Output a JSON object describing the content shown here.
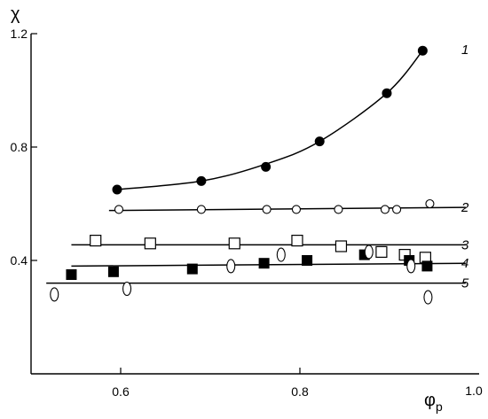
{
  "chart_data": {
    "type": "scatter",
    "title": "",
    "xlabel": "φ",
    "xlabel_sub": "p",
    "ylabel": "χ",
    "xlim": [
      0.5,
      1.0
    ],
    "ylim": [
      0.0,
      1.2
    ],
    "x_ticks": [
      {
        "value": 0.6,
        "label": "0.6"
      },
      {
        "value": 0.8,
        "label": "0.8"
      },
      {
        "value": 1.0,
        "label": "1.0"
      }
    ],
    "y_ticks": [
      {
        "value": 0.4,
        "label": "0.4"
      },
      {
        "value": 0.8,
        "label": "0.8"
      },
      {
        "value": 1.2,
        "label": "1.2"
      }
    ],
    "grid": false,
    "legend": "none",
    "series": [
      {
        "label": "1",
        "marker": "filled-circle",
        "fit": "curve",
        "fit_y": [
          0.65,
          0.68,
          0.74,
          0.82,
          0.99,
          1.14
        ],
        "x": [
          0.596,
          0.69,
          0.762,
          0.822,
          0.897,
          0.937
        ],
        "y": [
          0.65,
          0.68,
          0.73,
          0.82,
          0.99,
          1.14
        ]
      },
      {
        "label": "2",
        "marker": "open-circle",
        "fit": "linear",
        "fit_x": [
          0.587,
          0.985
        ],
        "fit_y": [
          0.576,
          0.587
        ],
        "x": [
          0.598,
          0.69,
          0.763,
          0.796,
          0.843,
          0.895,
          0.908,
          0.945
        ],
        "y": [
          0.58,
          0.58,
          0.58,
          0.58,
          0.58,
          0.58,
          0.58,
          0.6
        ]
      },
      {
        "label": "3",
        "marker": "open-square",
        "fit": "linear",
        "fit_x": [
          0.545,
          0.985
        ],
        "fit_y": [
          0.455,
          0.455
        ],
        "x": [
          0.572,
          0.633,
          0.727,
          0.797,
          0.846,
          0.891,
          0.917,
          0.94
        ],
        "y": [
          0.47,
          0.46,
          0.46,
          0.47,
          0.45,
          0.43,
          0.42,
          0.41
        ]
      },
      {
        "label": "4",
        "marker": "filled-square",
        "fit": "linear",
        "fit_x": [
          0.545,
          0.985
        ],
        "fit_y": [
          0.38,
          0.39
        ],
        "x": [
          0.545,
          0.592,
          0.68,
          0.76,
          0.808,
          0.872,
          0.922,
          0.942
        ],
        "y": [
          0.35,
          0.36,
          0.37,
          0.39,
          0.4,
          0.42,
          0.4,
          0.38
        ]
      },
      {
        "label": "5",
        "marker": "open-ellipse",
        "fit": "linear",
        "fit_x": [
          0.517,
          0.985
        ],
        "fit_y": [
          0.32,
          0.32
        ],
        "x": [
          0.526,
          0.607,
          0.723,
          0.779,
          0.877,
          0.924,
          0.943
        ],
        "y": [
          0.28,
          0.3,
          0.38,
          0.42,
          0.43,
          0.38,
          0.27
        ]
      }
    ]
  }
}
